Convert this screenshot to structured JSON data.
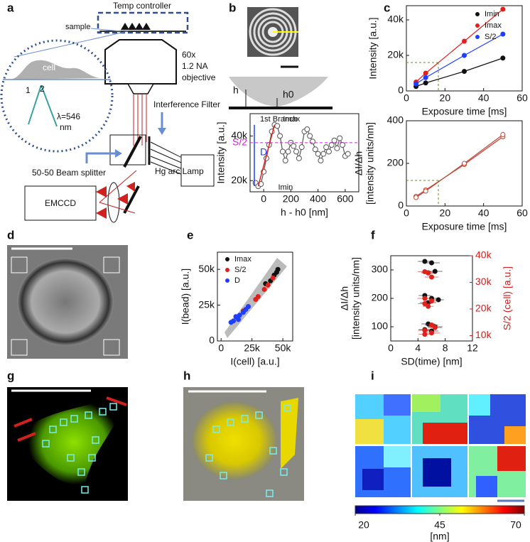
{
  "panel_labels": [
    "a",
    "b",
    "c",
    "d",
    "e",
    "f",
    "g",
    "h",
    "i"
  ],
  "diagram_a": {
    "temp": "Temp controller",
    "sample": "sample",
    "cell": "cell",
    "p1": "1",
    "p2": "2",
    "lambda": "λ=546",
    "lambda_unit": "nm",
    "obj1": "60x",
    "obj2": "1.2 NA",
    "obj3": "objective",
    "filter": "Interference Filter",
    "splitter": "50-50 Beam splitter",
    "lamp": "Hg arc Lamp",
    "camera": "EMCCD"
  },
  "diagram_b": {
    "h": "h",
    "h0": "h0"
  },
  "chart_data": [
    {
      "type": "line",
      "ylabel": "Intensity [a.u.]",
      "xlabel": "h - h0 [nm]",
      "xlim": [
        -100,
        700
      ],
      "xticks": [
        0,
        200,
        400,
        600
      ],
      "ylim": [
        15000,
        50000
      ],
      "yticks": [
        {
          "value": 20000,
          "label": "20k"
        },
        {
          "value": 40000,
          "label": "40k"
        }
      ],
      "branch_label": "1st Branch",
      "imax_label": "Imax",
      "imin_label": "Imin",
      "s2_label": "S/2",
      "d_label": "D",
      "s2_value": 37000,
      "series": [
        {
          "color": "#555555",
          "x": [
            -60,
            -40,
            -20,
            0,
            20,
            40,
            60,
            80,
            100,
            120,
            140,
            160,
            180,
            200,
            220,
            240,
            260,
            280,
            300,
            320,
            340,
            360,
            380,
            400,
            420,
            440,
            460,
            480,
            500,
            520,
            540,
            560,
            580,
            600,
            620
          ],
          "values": [
            19000,
            17500,
            18500,
            24000,
            30000,
            36000,
            42000,
            45000,
            44500,
            40000,
            33000,
            29000,
            33000,
            37000,
            35500,
            33000,
            30000,
            35000,
            42000,
            43000,
            40000,
            37500,
            34000,
            32000,
            29000,
            32000,
            35000,
            33000,
            36000,
            38000,
            34500,
            39000,
            36000,
            31000,
            32000
          ]
        }
      ]
    },
    {
      "type": "line",
      "ylabel": "Intensity [a.u.]",
      "xlabel": "Exposure time [ms]",
      "xlim": [
        0,
        60
      ],
      "xticks": [
        0,
        20,
        40,
        60
      ],
      "ylim": [
        0,
        48000
      ],
      "yticks": [
        0,
        {
          "value": 20000,
          "label": "20k"
        },
        {
          "value": 40000,
          "label": "40k"
        }
      ],
      "legend": "upper left",
      "series": [
        {
          "name": "Imin",
          "color": "#111111",
          "x": [
            5,
            10,
            30,
            50
          ],
          "values": [
            2500,
            4500,
            11000,
            18500
          ]
        },
        {
          "name": "Imax",
          "color": "#e0201b",
          "x": [
            5,
            10,
            30,
            50
          ],
          "values": [
            5000,
            10000,
            28000,
            46000
          ]
        },
        {
          "name": "S/2",
          "color": "#1f3fff",
          "x": [
            5,
            10,
            30,
            50
          ],
          "values": [
            4000,
            7500,
            20000,
            32000
          ]
        }
      ]
    },
    {
      "type": "line",
      "ylabel": [
        "ΔI/Δh",
        "[intensity units/nm]"
      ],
      "xlabel": "Exposure time [ms]",
      "xlim": [
        0,
        60
      ],
      "xticks": [
        0,
        20,
        40,
        60
      ],
      "ylim": [
        0,
        400
      ],
      "yticks": [
        0,
        200,
        400
      ],
      "series": [
        {
          "color": "#d03a2a",
          "x": [
            5,
            10,
            30,
            50
          ],
          "values": [
            45,
            75,
            195,
            325
          ]
        },
        {
          "color": "#b05040",
          "x": [
            5,
            10,
            30,
            50
          ],
          "values": [
            40,
            70,
            200,
            335
          ]
        }
      ]
    },
    {
      "type": "scatter",
      "ylabel": "I(bead) [a.u.]",
      "xlabel": "I(cell) [a.u.]",
      "xlim": [
        -3000,
        58000
      ],
      "xticks": [
        0,
        {
          "value": 25000,
          "label": "25k"
        },
        {
          "value": 50000,
          "label": "50k"
        }
      ],
      "ylim": [
        0,
        62000
      ],
      "yticks": [
        0,
        {
          "value": 25000,
          "label": "25k"
        },
        {
          "value": 50000,
          "label": "50k"
        }
      ],
      "legend": "upper left",
      "series": [
        {
          "name": "Imax",
          "color": "#111111",
          "x": [
            36000,
            40000,
            43000,
            45000,
            46000
          ],
          "values": [
            40000,
            42000,
            46000,
            48000,
            50000
          ]
        },
        {
          "name": "S/2",
          "color": "#e0201b",
          "x": [
            12000,
            18000,
            22000,
            28000,
            30000,
            35000,
            38000,
            42000
          ],
          "values": [
            17000,
            21000,
            24000,
            29000,
            31000,
            36000,
            39000,
            44000
          ]
        },
        {
          "name": "D",
          "color": "#1f3fff",
          "x": [
            8000,
            10000,
            12000,
            14000,
            15000,
            18000,
            20000,
            22000
          ],
          "values": [
            13000,
            14000,
            17000,
            15000,
            18000,
            20000,
            22000,
            24000
          ]
        }
      ]
    },
    {
      "type": "scatter",
      "ylabel": [
        "ΔI/Δh",
        "[intensity units/nm]"
      ],
      "xlabel": "SD(time) [nm]",
      "y2label": "S/2 (cell) [a.u.]",
      "xlim": [
        0,
        12
      ],
      "xticks": [
        0,
        4,
        8,
        12
      ],
      "ylim": [
        50,
        350
      ],
      "yticks": [
        100,
        200,
        300
      ],
      "y2lim": [
        8000,
        40000
      ],
      "y2ticks": [
        {
          "value": 10000,
          "label": "10k"
        },
        {
          "value": 20000,
          "label": "20k"
        },
        {
          "value": 30000,
          "label": "30k"
        },
        {
          "value": 40000,
          "label": "40k"
        }
      ],
      "series": [
        {
          "color": "#111111",
          "x": [
            5,
            6,
            5.5,
            6.5,
            5,
            6,
            5.5,
            7,
            5.5,
            6.5,
            5,
            6
          ],
          "values": [
            330,
            325,
            290,
            295,
            210,
            200,
            185,
            195,
            110,
            100,
            90,
            85
          ],
          "xerr": [
            1,
            1.2,
            1,
            1.1,
            0.9,
            1,
            1.2,
            0.8,
            1,
            1.1,
            0.9,
            1
          ]
        },
        {
          "color": "#e0201b",
          "axis": "y2",
          "x": [
            5,
            5.5,
            6,
            5,
            6,
            5,
            5.5,
            6.5,
            5,
            6,
            5,
            6
          ],
          "values": [
            34000,
            33500,
            32000,
            24000,
            23000,
            22000,
            21000,
            13000,
            12000,
            11000,
            10500,
            14000
          ],
          "xerr": [
            1,
            0.8,
            1,
            1.1,
            0.9,
            1,
            0.8,
            1,
            1,
            1.2,
            0.9,
            1
          ]
        }
      ]
    },
    {
      "type": "colorbar",
      "clim": [
        20,
        70
      ],
      "cticks": [
        20,
        45,
        70
      ],
      "label": "[nm]"
    }
  ]
}
